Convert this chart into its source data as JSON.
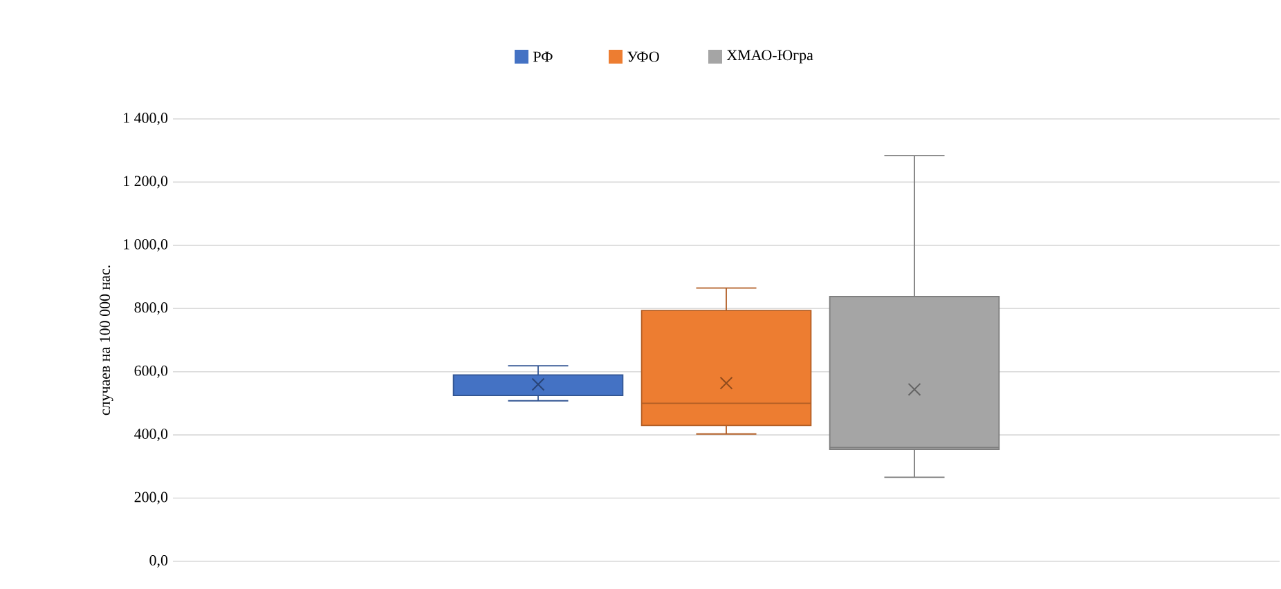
{
  "chart_data": {
    "type": "box",
    "ylabel": "случаев на 100 000 нас.",
    "categories": [
      null
    ],
    "series": [
      {
        "name": "РФ",
        "color": "#4472c4",
        "boxes": [
          {
            "low": 508,
            "q1": 525,
            "median": 525,
            "q3": 590,
            "high": 619,
            "mean": 560
          }
        ]
      },
      {
        "name": "УФО",
        "color": "#ed7d31",
        "boxes": [
          {
            "low": 403,
            "q1": 430,
            "median": 500,
            "q3": 794,
            "high": 865,
            "mean": 564
          }
        ]
      },
      {
        "name": "ХМАО-Югра",
        "color": "#a5a5a5",
        "boxes": [
          {
            "low": 266,
            "q1": 354,
            "median": 360,
            "q3": 838,
            "high": 1284,
            "mean": 544
          }
        ]
      }
    ],
    "ylim": [
      0,
      1400
    ],
    "yticks": [
      {
        "value": 0,
        "label": "0,0"
      },
      {
        "value": 200,
        "label": "200,0"
      },
      {
        "value": 400,
        "label": "400,0"
      },
      {
        "value": 600,
        "label": "600,0"
      },
      {
        "value": 800,
        "label": "800,0"
      },
      {
        "value": 1000,
        "label": "1 000,0"
      },
      {
        "value": 1200,
        "label": "1 200,0"
      },
      {
        "value": 1400,
        "label": "1 400,0"
      }
    ],
    "grid": "y",
    "legend": "top",
    "marker": "cross"
  }
}
